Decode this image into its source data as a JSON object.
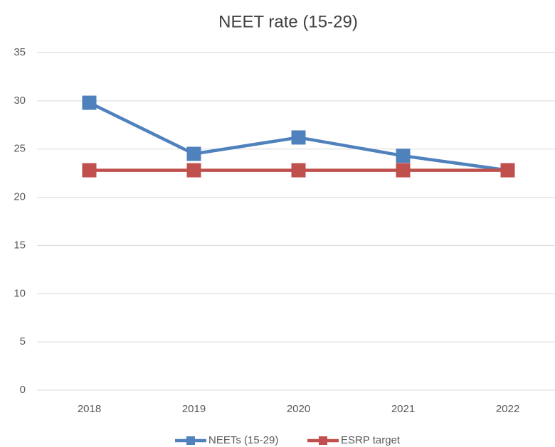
{
  "chart_data": {
    "type": "line",
    "title": "NEET rate (15-29)",
    "categories": [
      "2018",
      "2019",
      "2020",
      "2021",
      "2022"
    ],
    "series": [
      {
        "name": "NEETs (15-29)",
        "color": "#4f81bd",
        "values": [
          29.8,
          24.5,
          26.2,
          24.3,
          22.8
        ]
      },
      {
        "name": "ESRP target",
        "color": "#c0504d",
        "values": [
          22.8,
          22.8,
          22.8,
          22.8,
          22.8
        ]
      }
    ],
    "ylim": [
      0,
      35
    ],
    "yticks": [
      0,
      5,
      10,
      15,
      20,
      25,
      30,
      35
    ],
    "grid": true,
    "legend": "bottom"
  }
}
